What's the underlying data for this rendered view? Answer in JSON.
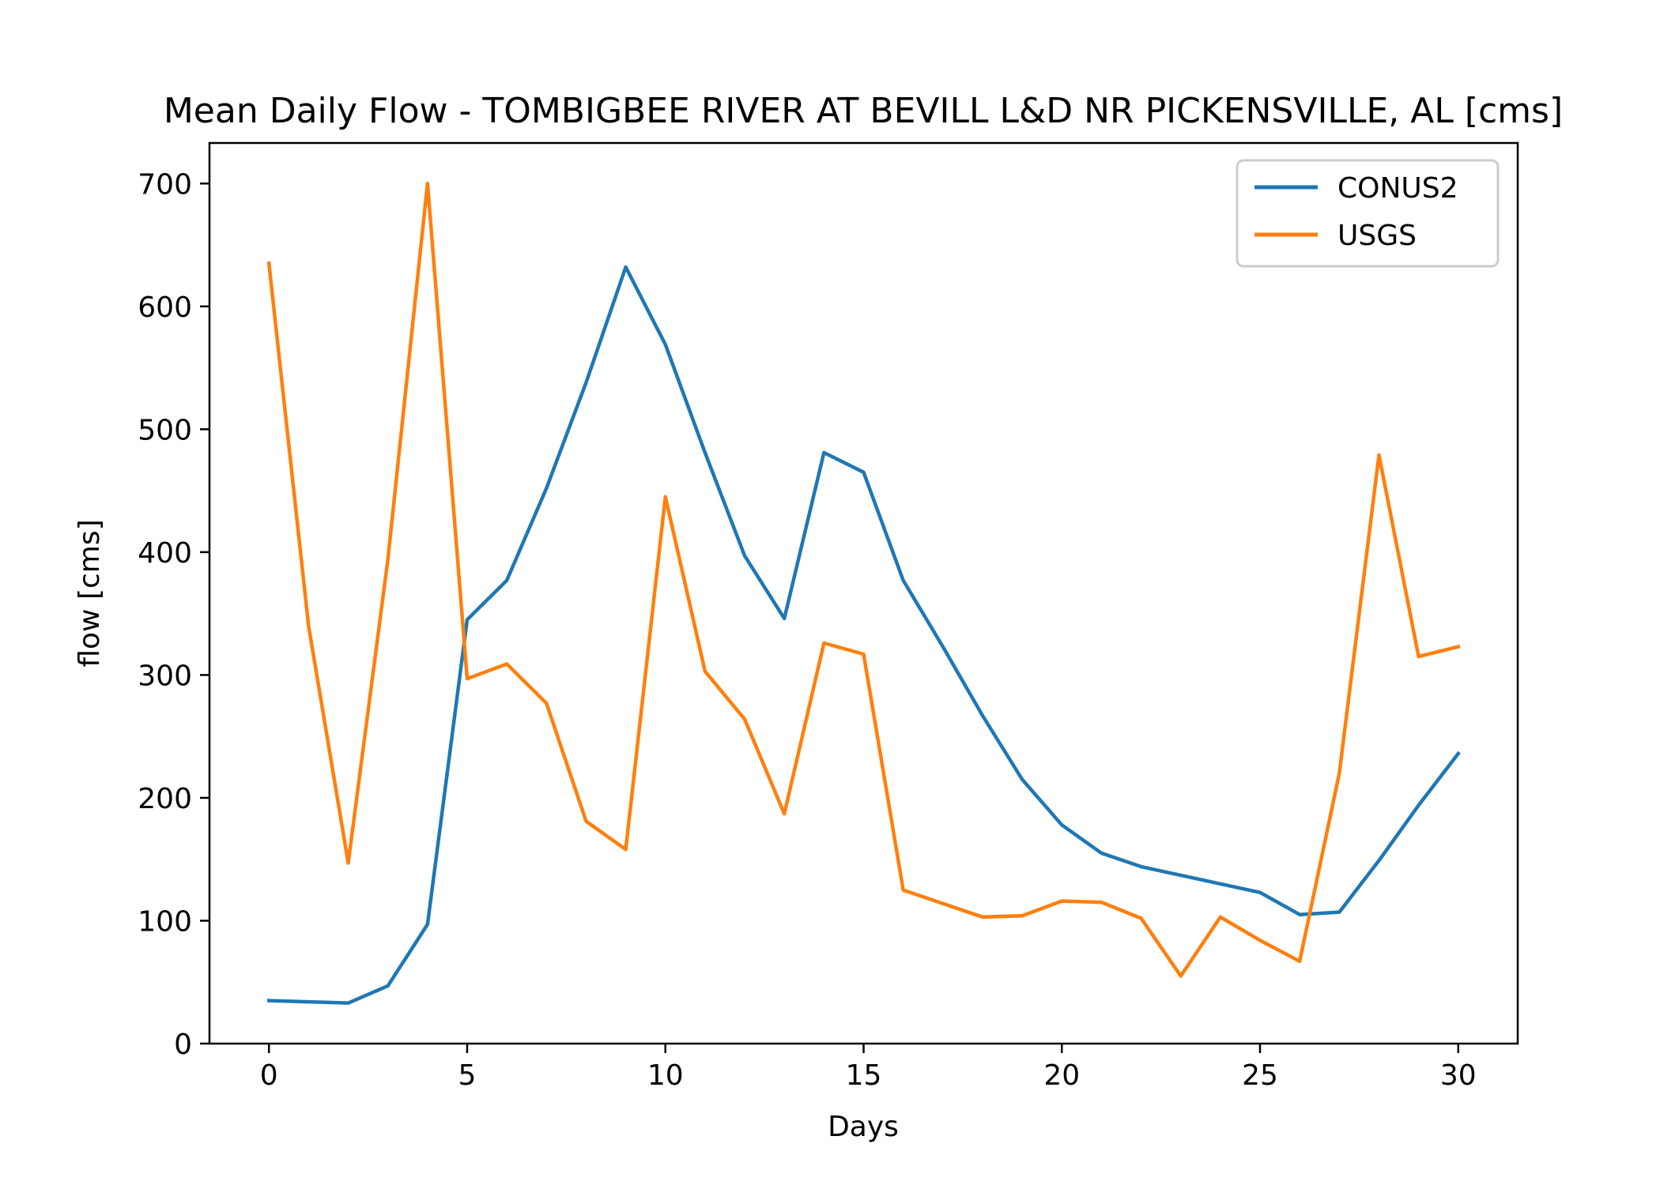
{
  "chart_data": {
    "type": "line",
    "title": "Mean Daily Flow - TOMBIGBEE RIVER AT BEVILL L&D NR PICKENSVILLE, AL [cms]",
    "xlabel": "Days",
    "ylabel": "flow [cms]",
    "xlim": [
      -1.5,
      31.5
    ],
    "ylim": [
      0,
      733
    ],
    "xticks": [
      0,
      5,
      10,
      15,
      20,
      25,
      30
    ],
    "yticks": [
      0,
      100,
      200,
      300,
      400,
      500,
      600,
      700
    ],
    "grid": false,
    "legend_position": "top-right",
    "x": [
      0,
      1,
      2,
      3,
      4,
      5,
      6,
      7,
      8,
      9,
      10,
      11,
      12,
      13,
      14,
      15,
      16,
      17,
      18,
      19,
      20,
      21,
      22,
      23,
      24,
      25,
      26,
      27,
      28,
      29,
      30
    ],
    "series": [
      {
        "name": "CONUS2",
        "color": "#1f77b4",
        "values": [
          35,
          34,
          33,
          47,
          97,
          345,
          377,
          452,
          538,
          632,
          569,
          481,
          397,
          346,
          481,
          465,
          377,
          323,
          267,
          215,
          178,
          155,
          144,
          137,
          130,
          123,
          105,
          107,
          149,
          194,
          236
        ]
      },
      {
        "name": "USGS",
        "color": "#ff7f0e",
        "values": [
          635,
          340,
          147,
          394,
          700,
          297,
          309,
          277,
          181,
          158,
          445,
          303,
          264,
          187,
          326,
          317,
          125,
          114,
          103,
          104,
          116,
          115,
          102,
          55,
          103,
          84,
          67,
          220,
          479,
          315,
          323
        ]
      }
    ]
  }
}
